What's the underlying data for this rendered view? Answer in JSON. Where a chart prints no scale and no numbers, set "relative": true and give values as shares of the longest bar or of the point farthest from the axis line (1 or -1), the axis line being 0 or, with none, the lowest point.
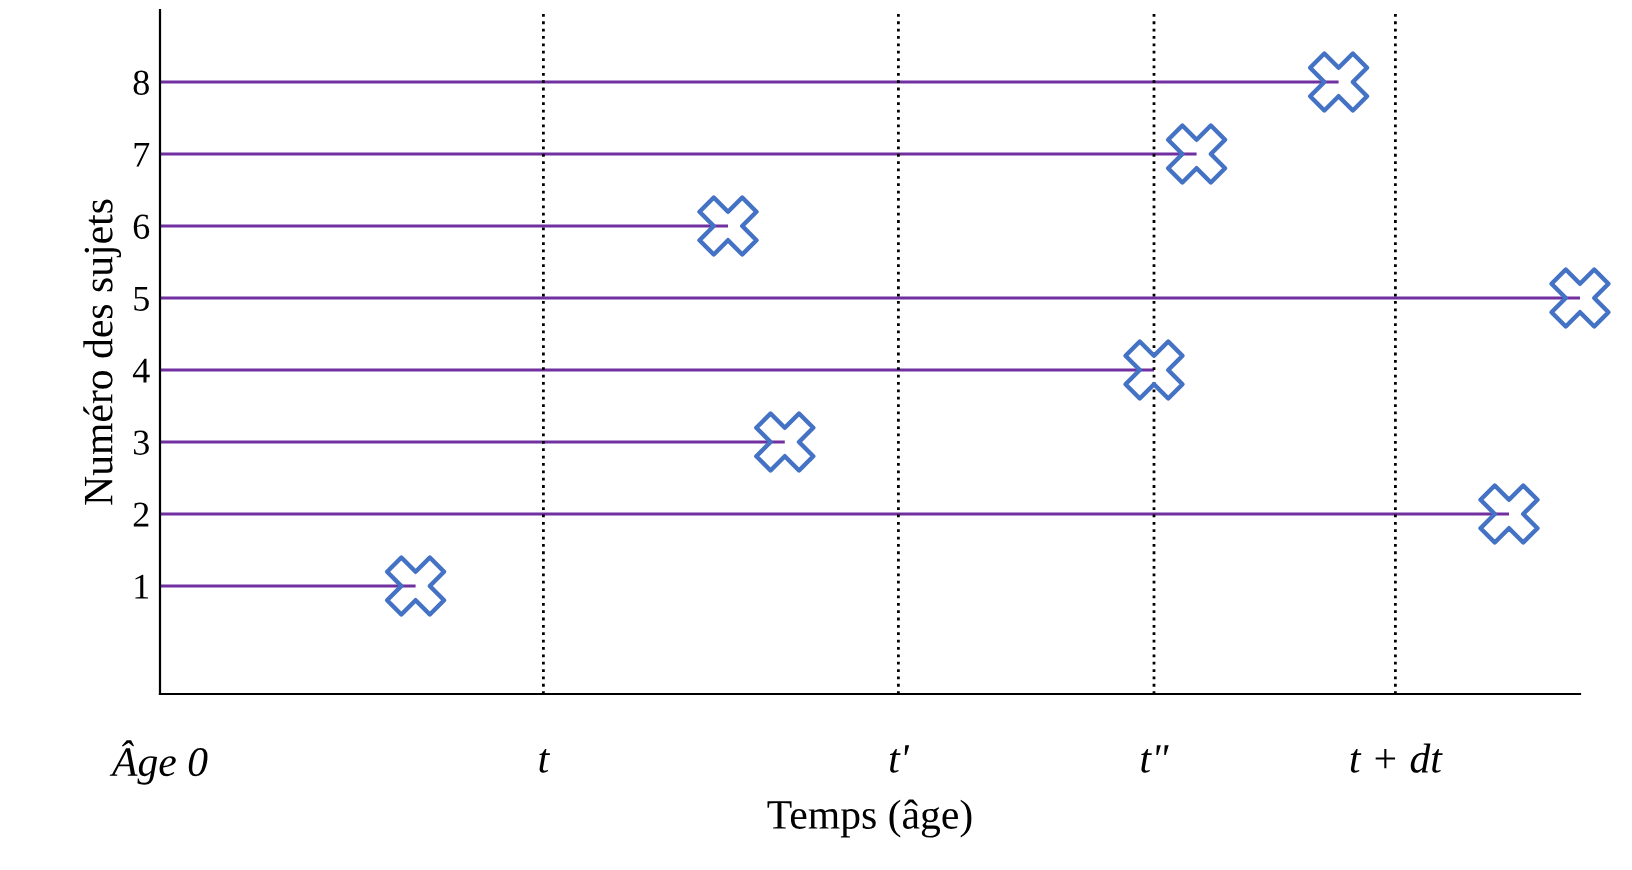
{
  "chart_data": {
    "type": "bar",
    "orientation": "horizontal",
    "relative": true,
    "categories": [
      "8",
      "7",
      "6",
      "5",
      "4",
      "3",
      "2",
      "1"
    ],
    "series": [
      {
        "color": "#7030a0",
        "values": [
          0.83,
          0.73,
          0.4,
          1,
          0.7,
          0.44,
          0.95,
          0.18
        ]
      },
      {
        "type": "scatter",
        "color": "#4472c4",
        "marker": "cross",
        "values": [
          0.83,
          0.73,
          0.4,
          1,
          0.7,
          0.44,
          0.95,
          0.18
        ]
      }
    ],
    "grid": false,
    "legend": false,
    "xlabel": "Temps (âge)",
    "ylabel": "Numéro des sujets",
    "ref_lines": [
      {
        "axis": "x",
        "value": 0.27,
        "label": "t",
        "color": "#000000",
        "line_style": "dotted"
      },
      {
        "axis": "x",
        "value": 0.52,
        "label": "t'",
        "color": "#000000",
        "line_style": "dotted"
      },
      {
        "axis": "x",
        "value": 0.7,
        "label": "t\"",
        "color": "#000000",
        "line_style": "dotted"
      },
      {
        "axis": "x",
        "value": 0.87,
        "label": "t + dt",
        "color": "#000000",
        "line_style": "dotted"
      }
    ],
    "annotations": [
      "Âge 0"
    ]
  }
}
